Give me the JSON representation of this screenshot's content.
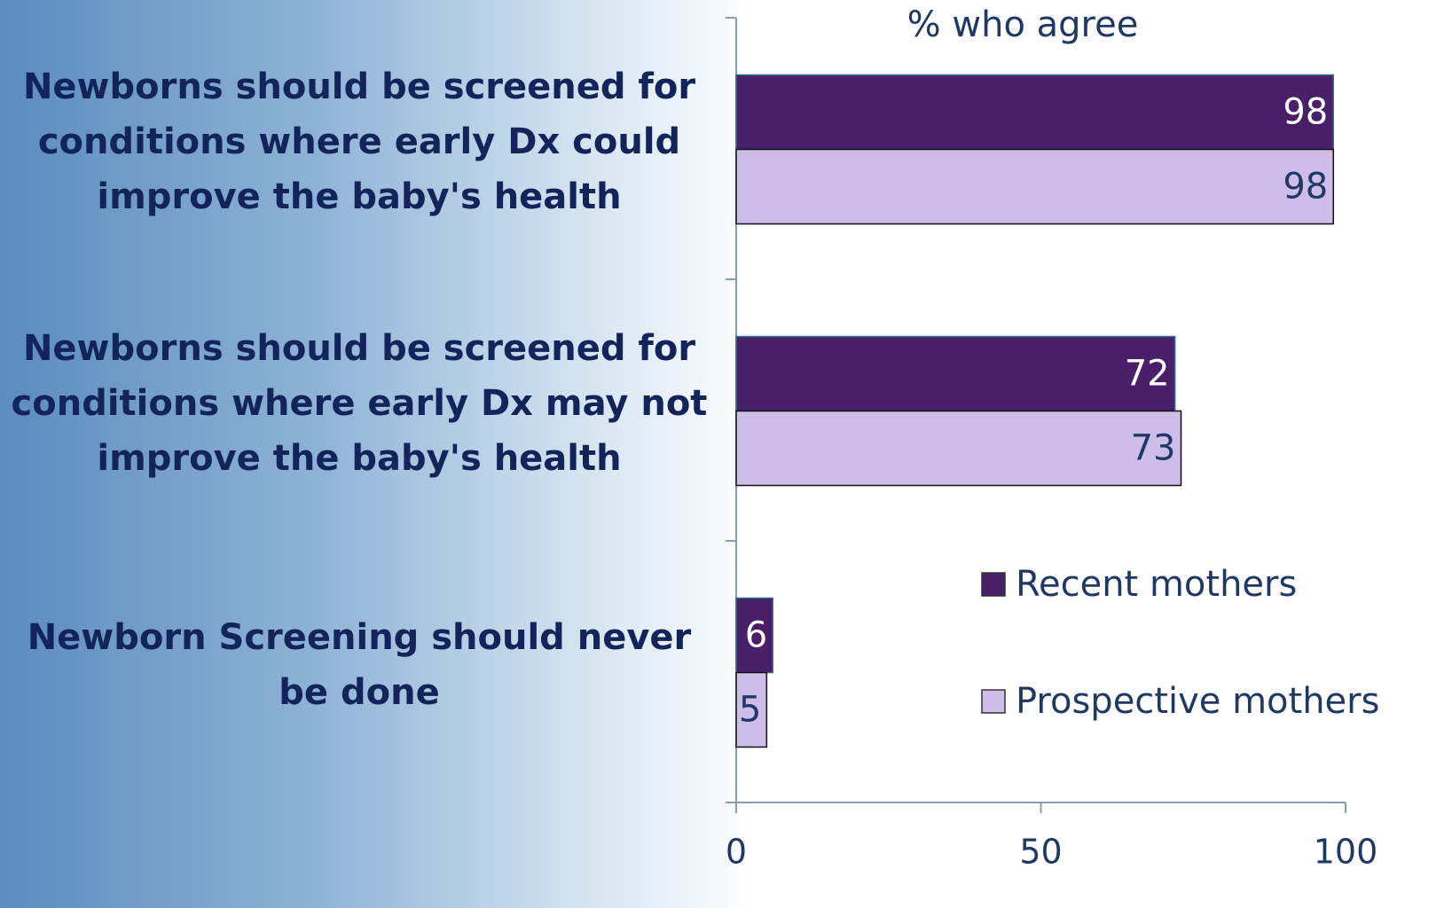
{
  "chart_data": {
    "type": "bar",
    "orientation": "horizontal",
    "title": "% who agree",
    "categories": [
      "Newborns should be screened for conditions where early Dx could improve the baby's health",
      "Newborns should be screened for conditions where early Dx may not improve the baby's health",
      "Newborn Screening should never be done"
    ],
    "series": [
      {
        "name": "Recent mothers",
        "color": "#4a1f6a",
        "values": [
          98,
          72,
          6
        ]
      },
      {
        "name": "Prospective mothers",
        "color": "#cfbde9",
        "values": [
          98,
          73,
          5
        ]
      }
    ],
    "xlim": [
      0,
      100
    ],
    "xticks": [
      0,
      50,
      100
    ],
    "grid": false,
    "legend": "right"
  }
}
